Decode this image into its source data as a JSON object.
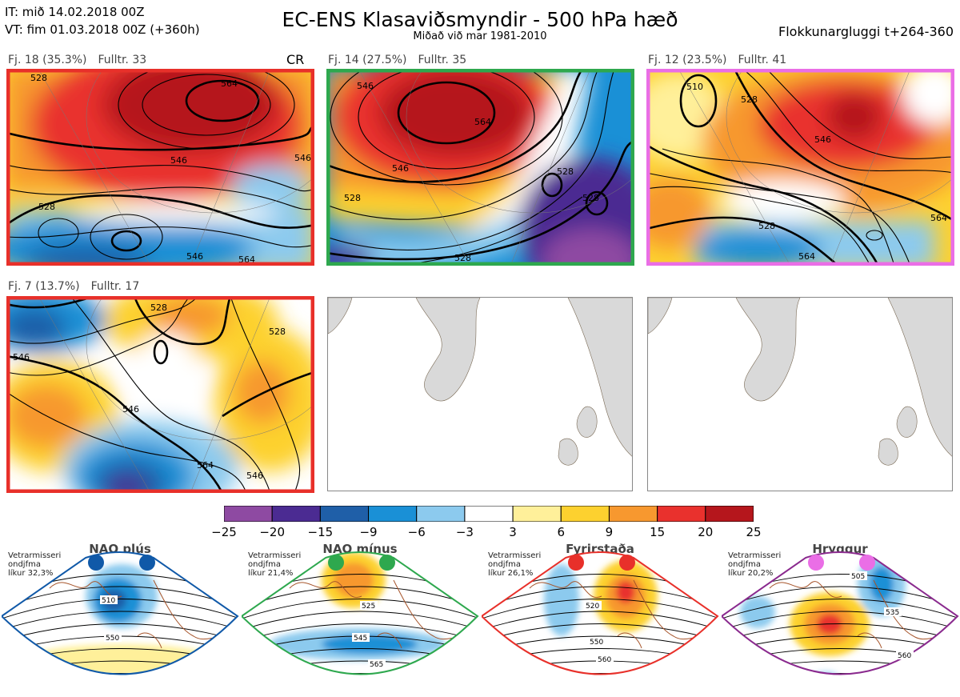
{
  "header": {
    "it_line": "IT: mið 14.02.2018 00Z",
    "vt_line": "VT: fim 01.03.2018 00Z  (+360h)",
    "title": "EC-ENS Klasaviðsmyndir - 500 hPa hæð",
    "subtitle": "Miðað við mar 1981-2010",
    "window": "Flokkunargluggi t+264-360"
  },
  "clusters": [
    {
      "label": "Fj. 18 (35.3%)",
      "members": "Fulltr. 33",
      "tag": "CR",
      "border": "#e8302a",
      "contours": [
        "528",
        "564",
        "546",
        "546",
        "528",
        "546",
        "564"
      ]
    },
    {
      "label": "Fj. 14 (27.5%)",
      "members": "Fulltr. 35",
      "tag": "",
      "border": "#2ea84e",
      "contours": [
        "546",
        "564",
        "546",
        "528",
        "528",
        "528",
        "528"
      ]
    },
    {
      "label": "Fj. 12 (23.5%)",
      "members": "Fulltr. 41",
      "tag": "",
      "border": "#ea6ee6",
      "contours": [
        "510",
        "528",
        "546",
        "528",
        "564",
        "564"
      ]
    },
    {
      "label": "Fj. 7 (13.7%)",
      "members": "Fulltr. 17",
      "tag": "",
      "border": "#e8302a",
      "contours": [
        "528",
        "546",
        "528",
        "546",
        "546",
        "564"
      ]
    }
  ],
  "colorbar": {
    "ticks": [
      "−25",
      "−20",
      "−15",
      "−9",
      "−6",
      "−3",
      "3",
      "6",
      "9",
      "15",
      "20",
      "25"
    ],
    "colors": [
      "#8e4aa2",
      "#4b2b92",
      "#1f5fa8",
      "#1a90d6",
      "#8ccaee",
      "#ffffff",
      "#fff09a",
      "#fdd12f",
      "#f7982f",
      "#e9312d",
      "#b5161c"
    ]
  },
  "regimes": [
    {
      "name": "NAO plús",
      "note": [
        "Vetrarmisseri",
        "ondjfma",
        "líkur 32,3%"
      ],
      "dot_color": "#1059a8",
      "border": "#1059a8",
      "labels": [
        "510",
        "550"
      ]
    },
    {
      "name": "NAO mínus",
      "note": [
        "Vetrarmisseri",
        "ondjfma",
        "líkur 21,4%"
      ],
      "dot_color": "#2ea84e",
      "border": "#2ea84e",
      "labels": [
        "525",
        "545",
        "565"
      ]
    },
    {
      "name": "Fyrirstaða",
      "note": [
        "Vetrarmisseri",
        "ondjfma",
        "líkur 26,1%"
      ],
      "dot_color": "#e8302a",
      "border": "#e8302a",
      "labels": [
        "520",
        "550",
        "560"
      ]
    },
    {
      "name": "Hryggur",
      "note": [
        "Vetrarmisseri",
        "ondjfma",
        "líkur 20,2%"
      ],
      "dot_color": "#ea6ee6",
      "border": "#8a2a8e",
      "labels": [
        "505",
        "535",
        "560"
      ]
    }
  ]
}
